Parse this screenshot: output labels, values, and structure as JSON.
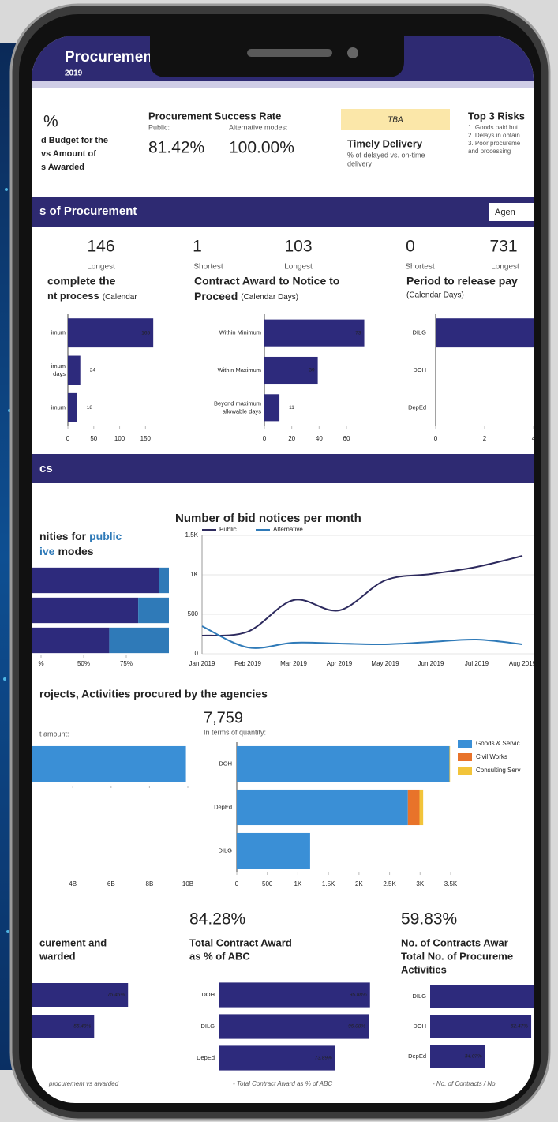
{
  "header": {
    "title": "Procuremen",
    "year": "2019"
  },
  "kpis": {
    "budget": {
      "value": "%",
      "lines": [
        "d Budget for the",
        "vs Amount of",
        "s Awarded"
      ]
    },
    "success_rate": {
      "title": "Procurement Success Rate",
      "public_label": "Public:",
      "alternative_label": "Alternative modes:",
      "public_value": "81.42%",
      "alternative_value": "100.00%"
    },
    "timely_delivery": {
      "badge": "TBA",
      "title": "Timely Delivery",
      "note_lines": [
        "% of delayed vs. on-time",
        "delivery"
      ]
    },
    "risks": {
      "title": "Top 3 Risks",
      "lines": [
        "1. Goods paid but",
        "2. Delays in obtain",
        "3. Poor procureme",
        "and processing"
      ]
    }
  },
  "timeliness": {
    "title": "s of Procurement",
    "button": "Agen",
    "panels": [
      {
        "stats": [
          {
            "value": 146,
            "label": "Longest"
          }
        ],
        "title_lines": [
          "complete the",
          "nt process"
        ],
        "subtitle": "(Calendar",
        "chart": {
          "type": "bar",
          "categories": [
            [
              "imum"
            ],
            [
              "imum",
              "days"
            ],
            [
              "imum"
            ]
          ],
          "values": [
            165,
            24,
            18
          ],
          "color": "#2d2a7c",
          "xlim": [
            0,
            180
          ],
          "xticks": [
            0,
            50,
            100,
            150
          ]
        }
      },
      {
        "stats": [
          {
            "value": 1,
            "label": "Shortest"
          },
          {
            "value": 103,
            "label": "Longest"
          }
        ],
        "title_lines": [
          "Contract Award to Notice to",
          "Proceed"
        ],
        "subtitle": "(Calendar Days)",
        "chart": {
          "type": "bar",
          "categories": [
            [
              "Within Minimum"
            ],
            [
              "Within Maximum"
            ],
            [
              "Beyond maximum",
              "allowable days"
            ]
          ],
          "values": [
            73,
            39,
            11
          ],
          "color": "#2d2a7c",
          "xlim": [
            0,
            75
          ],
          "xticks": [
            0,
            20,
            40,
            60
          ]
        }
      },
      {
        "stats": [
          {
            "value": 0,
            "label": "Shortest"
          },
          {
            "value": 731,
            "label": "Longest"
          }
        ],
        "title_lines": [
          "Period to release pay"
        ],
        "subtitle": "(Calendar Days)",
        "chart": {
          "type": "bar",
          "categories": [
            [
              "DILG"
            ],
            [
              "DOH"
            ],
            [
              "DepEd"
            ]
          ],
          "values": [
            5,
            0,
            0
          ],
          "color": "#2d2a7c",
          "xlim": [
            0,
            6
          ],
          "xticks": [
            0,
            2,
            4
          ]
        }
      }
    ]
  },
  "statistics": {
    "title": "cs",
    "mode_share": {
      "title_parts": [
        [
          {
            "text": "nities for"
          },
          {
            "text": "public",
            "color": "#2f7ab8"
          }
        ],
        [
          {
            "text": "ive",
            "color": "#2f7ab8"
          },
          {
            "text": "modes"
          }
        ]
      ],
      "chart": {
        "type": "bar",
        "stacked": true,
        "series": [
          {
            "color": "#2d2a7c",
            "values": [
              94,
              82,
              65
            ]
          },
          {
            "color": "#2f7ab8",
            "values": [
              6,
              18,
              35
            ]
          }
        ],
        "xlim": [
          0,
          100
        ],
        "xticks": [
          {
            "value": 25,
            "label": "%"
          },
          {
            "value": 50,
            "label": "50%"
          },
          {
            "value": 75,
            "label": "75%"
          }
        ]
      }
    },
    "bid_notices": {
      "type": "line",
      "title": "Number of bid notices per month",
      "categories": [
        "Jan 2019",
        "Feb 2019",
        "Mar 2019",
        "Apr 2019",
        "May 2019",
        "Jun 2019",
        "Jul 2019",
        "Aug 2019"
      ],
      "series": [
        {
          "name": "Public",
          "color": "#2d2a5e",
          "values": [
            230,
            280,
            680,
            550,
            930,
            1010,
            1100,
            1240
          ]
        },
        {
          "name": "Alternative",
          "color": "#2f7ab8",
          "values": [
            350,
            80,
            140,
            130,
            120,
            150,
            180,
            120
          ]
        }
      ],
      "ylim": [
        0,
        1500
      ],
      "yticks": [
        0,
        500,
        {
          "value": 1000,
          "label": "1K"
        },
        {
          "value": 1500,
          "label": "1.5K"
        }
      ],
      "grid": true
    }
  },
  "agencies": {
    "title": "rojects, Activities procured by the agencies",
    "amount": {
      "label": "t amount:",
      "chart": {
        "type": "bar",
        "values": [
          9900000000
        ],
        "color": "#3a8fd6",
        "xlim": [
          0,
          10000000000
        ],
        "xticks": [
          {
            "value": 4000000000,
            "label": "4B"
          },
          {
            "value": 6000000000,
            "label": "6B"
          },
          {
            "value": 8000000000,
            "label": "8B"
          },
          {
            "value": 10000000000,
            "label": "10B"
          }
        ]
      }
    },
    "quantity": {
      "total": "7,759",
      "label": "In terms of quantity:",
      "chart": {
        "type": "bar",
        "stacked": true,
        "categories": [
          [
            "DOH"
          ],
          [
            "DepEd"
          ],
          [
            "DILG"
          ]
        ],
        "series": [
          {
            "name": "Goods & Servic",
            "color": "#3a8fd6",
            "values": [
              3480,
              2800,
              1200
            ]
          },
          {
            "name": "Civil Works",
            "color": "#e8732a",
            "values": [
              0,
              190,
              0
            ]
          },
          {
            "name": "Consulting Serv",
            "color": "#f2c43a",
            "values": [
              10,
              60,
              0
            ]
          }
        ],
        "xlim": [
          0,
          3500
        ],
        "xticks": [
          0,
          500,
          {
            "value": 1000,
            "label": "1K"
          },
          {
            "value": 1500,
            "label": "1.5K"
          },
          {
            "value": 2000,
            "label": "2K"
          },
          {
            "value": 2500,
            "label": "2.5K"
          },
          {
            "value": 3000,
            "label": "3K"
          },
          {
            "value": 3500,
            "label": "3.5K"
          }
        ]
      }
    }
  },
  "awards": {
    "panels": [
      {
        "title_lines": [
          "curement and",
          "warded"
        ],
        "footnote": "procurement vs awarded",
        "chart": {
          "type": "bar",
          "values": [
            75.45,
            55.48
          ],
          "value_labels": [
            "75.45%",
            "55.48%"
          ],
          "color": "#2d2a7c",
          "xlim": [
            0,
            100
          ]
        }
      },
      {
        "value": "84.28%",
        "title_lines": [
          "Total Contract Award",
          "as % of ABC"
        ],
        "footnote": "- Total Contract Award as % of ABC",
        "chart": {
          "type": "bar",
          "categories": [
            [
              "DOH"
            ],
            [
              "DILG"
            ],
            [
              "DepEd"
            ]
          ],
          "values": [
            95.88,
            95.08,
            73.89
          ],
          "value_labels": [
            "95.88%",
            "95.08%",
            "73.89%"
          ],
          "color": "#2d2a7c",
          "xlim": [
            0,
            100
          ]
        }
      },
      {
        "value": "59.83%",
        "title_lines": [
          "No. of Contracts Awar",
          "Total No. of Procureme",
          "Activities"
        ],
        "footnote": "- No. of Contracts / No",
        "chart": {
          "type": "bar",
          "categories": [
            [
              "DILG"
            ],
            [
              "DOH"
            ],
            [
              "DepEd"
            ]
          ],
          "values": [
            70,
            62.47,
            34.07
          ],
          "value_labels": [
            null,
            "62.47%",
            "34.07%"
          ],
          "color": "#2d2a7c",
          "xlim": [
            0,
            100
          ]
        }
      }
    ]
  }
}
